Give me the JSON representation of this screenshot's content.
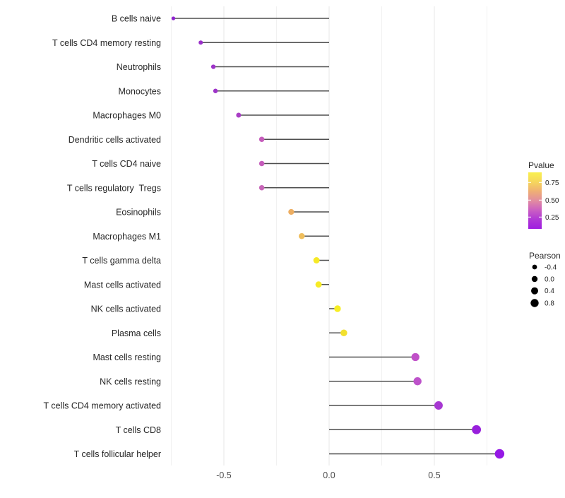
{
  "chart_data": {
    "type": "lollipop",
    "title": "",
    "xlabel": "",
    "ylabel": "",
    "grid": "vertical-only",
    "xlim": [
      -0.8175,
      0.8875
    ],
    "gridline_values": [
      -0.75,
      -0.5,
      -0.25,
      0,
      0.25,
      0.5,
      0.75
    ],
    "x_ticks": [
      {
        "value": -0.5,
        "label": "-0.5"
      },
      {
        "value": 0.0,
        "label": "0.0"
      },
      {
        "value": 0.5,
        "label": "0.5"
      }
    ],
    "points": [
      {
        "label": "B cells naive",
        "pearson": -0.74,
        "pvalue": 0.02,
        "color": "#8E22CE"
      },
      {
        "label": "T cells CD4 memory resting",
        "pearson": -0.61,
        "pvalue": 0.13,
        "color": "#9A30C9"
      },
      {
        "label": "Neutrophils",
        "pearson": -0.55,
        "pvalue": 0.14,
        "color": "#9D33C8"
      },
      {
        "label": "Monocytes",
        "pearson": -0.54,
        "pvalue": 0.14,
        "color": "#9D33C8"
      },
      {
        "label": "Macrophages M0",
        "pearson": -0.43,
        "pvalue": 0.22,
        "color": "#A93EC5"
      },
      {
        "label": "Dendritic cells activated",
        "pearson": -0.32,
        "pvalue": 0.38,
        "color": "#C55CBB"
      },
      {
        "label": "T cells CD4 naive",
        "pearson": -0.32,
        "pvalue": 0.38,
        "color": "#C55CBB"
      },
      {
        "label": "T cells regulatory  Tregs",
        "pearson": -0.32,
        "pvalue": 0.4,
        "color": "#C765B8"
      },
      {
        "label": "Eosinophils",
        "pearson": -0.18,
        "pvalue": 0.62,
        "color": "#EDAE62"
      },
      {
        "label": "Macrophages M1",
        "pearson": -0.13,
        "pvalue": 0.68,
        "color": "#EFBE5C"
      },
      {
        "label": "T cells gamma delta",
        "pearson": -0.06,
        "pvalue": 0.88,
        "color": "#F6E926"
      },
      {
        "label": "Mast cells activated",
        "pearson": -0.05,
        "pvalue": 0.89,
        "color": "#F7EB25"
      },
      {
        "label": "NK cells activated",
        "pearson": 0.04,
        "pvalue": 0.9,
        "color": "#F7EE24"
      },
      {
        "label": "Plasma cells",
        "pearson": 0.07,
        "pvalue": 0.85,
        "color": "#F2E02E"
      },
      {
        "label": "Mast cells resting",
        "pearson": 0.41,
        "pvalue": 0.33,
        "color": "#C050C8"
      },
      {
        "label": "NK cells resting",
        "pearson": 0.42,
        "pvalue": 0.32,
        "color": "#BD52CA"
      },
      {
        "label": "T cells CD4 memory activated",
        "pearson": 0.52,
        "pvalue": 0.2,
        "color": "#A737D2"
      },
      {
        "label": "T cells CD8",
        "pearson": 0.7,
        "pvalue": 0.06,
        "color": "#9820DC"
      },
      {
        "label": "T cells follicular helper",
        "pearson": 0.81,
        "pvalue": 0.02,
        "color": "#9519E5"
      }
    ],
    "legends": {
      "pvalue": {
        "title": "Pvalue",
        "position": "right",
        "tick_labels": [
          "0.75",
          "0.50",
          "0.25"
        ],
        "gradient_top_to_bottom": [
          "#F9F04F",
          "#F6D75C",
          "#EFAF74",
          "#E28DA0",
          "#CB5FC2",
          "#B038D5",
          "#9F1DE0"
        ]
      },
      "pearson": {
        "title": "Pearson",
        "position": "right",
        "size_labels": [
          "-0.4",
          "0.0",
          "0.4",
          "0.8"
        ],
        "dot_color": "#000000"
      }
    },
    "colors": {
      "stem": "#4F4F4F",
      "grid_major": "#E7E7E7",
      "grid_minor": "#F1F1F1",
      "axis_text": "#262626",
      "tick_text": "#4D4D4D",
      "background": "#FFFFFF"
    }
  }
}
